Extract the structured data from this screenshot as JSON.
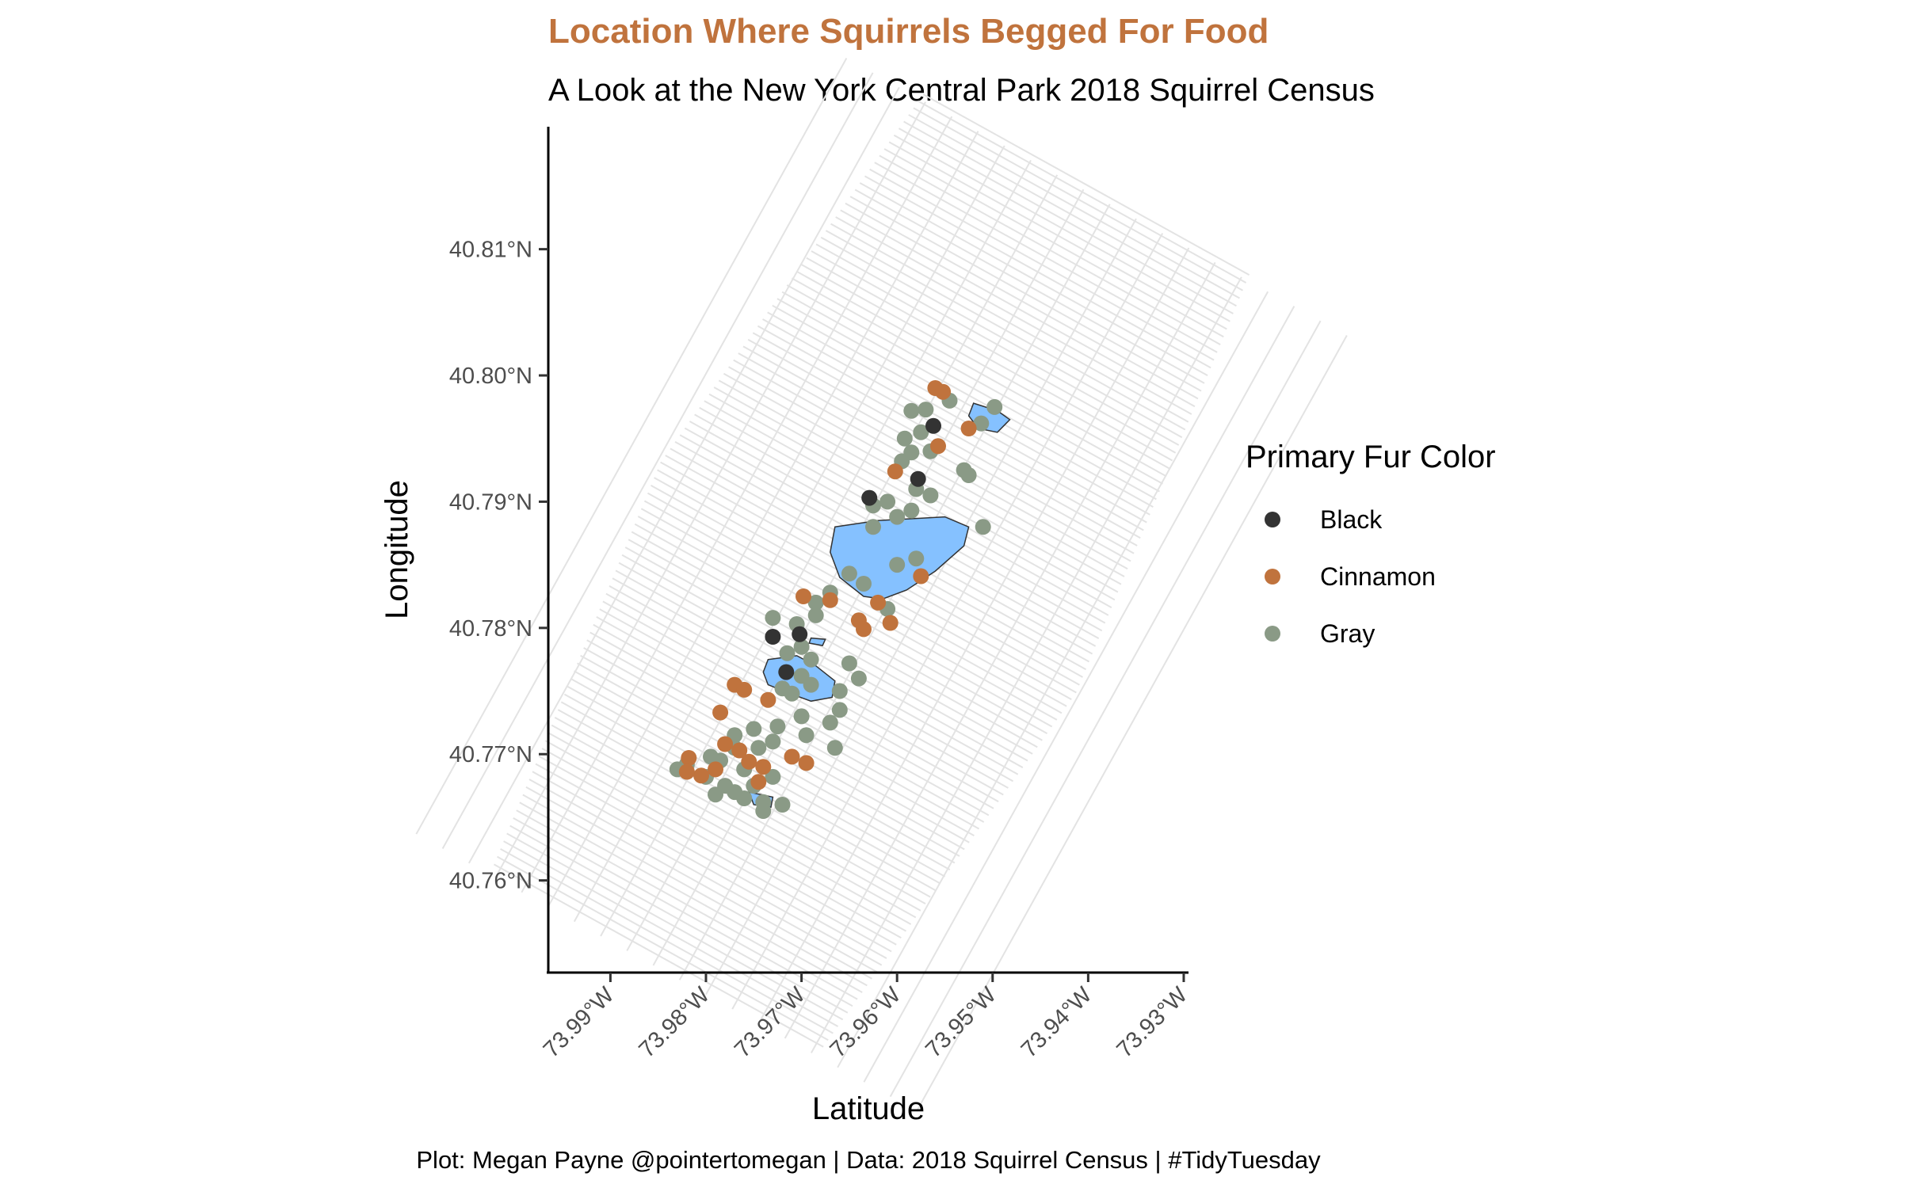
{
  "chart_data": {
    "type": "scatter",
    "title": "Location Where Squirrels Begged For Food",
    "subtitle": "A Look at the New York Central Park 2018 Squirrel Census",
    "xlabel": "Latitude",
    "ylabel": "Longitude",
    "caption": "Plot: Megan Payne @pointertomegan | Data: 2018 Squirrel Census | #TidyTuesday",
    "xlim": [
      -73.9965,
      -73.9295
    ],
    "ylim": [
      40.7527,
      40.8197
    ],
    "x_ticks": [
      {
        "value": -73.99,
        "label": "73.99°W"
      },
      {
        "value": -73.98,
        "label": "73.98°W"
      },
      {
        "value": -73.97,
        "label": "73.97°W"
      },
      {
        "value": -73.96,
        "label": "73.96°W"
      },
      {
        "value": -73.95,
        "label": "73.95°W"
      },
      {
        "value": -73.94,
        "label": "73.94°W"
      },
      {
        "value": -73.93,
        "label": "73.93°W"
      }
    ],
    "y_ticks": [
      {
        "value": 40.76,
        "label": "40.76°N"
      },
      {
        "value": 40.77,
        "label": "40.77°N"
      },
      {
        "value": 40.78,
        "label": "40.78°N"
      },
      {
        "value": 40.79,
        "label": "40.79°N"
      },
      {
        "value": 40.8,
        "label": "40.80°N"
      },
      {
        "value": 40.81,
        "label": "40.81°N"
      }
    ],
    "legend": {
      "title": "Primary Fur Color",
      "position": "right",
      "entries": [
        {
          "label": "Black",
          "color": "#333333"
        },
        {
          "label": "Cinnamon",
          "color": "#c0733d"
        },
        {
          "label": "Gray",
          "color": "#8a9a86"
        }
      ]
    },
    "colors": {
      "title": "#c0733d",
      "water": "#85c1ff",
      "streets": "#e3e3e3"
    },
    "series": [
      {
        "name": "Black",
        "points": [
          [
            -73.9562,
            40.796
          ],
          [
            -73.9578,
            40.7918
          ],
          [
            -73.9629,
            40.7903
          ],
          [
            -73.973,
            40.7793
          ],
          [
            -73.9702,
            40.7795
          ],
          [
            -73.9716,
            40.7765
          ]
        ]
      },
      {
        "name": "Cinnamon",
        "points": [
          [
            -73.956,
            40.799
          ],
          [
            -73.9552,
            40.7987
          ],
          [
            -73.9525,
            40.7958
          ],
          [
            -73.9557,
            40.7944
          ],
          [
            -73.9602,
            40.7924
          ],
          [
            -73.9607,
            40.7804
          ],
          [
            -73.9575,
            40.7841
          ],
          [
            -73.9698,
            40.7825
          ],
          [
            -73.967,
            40.7822
          ],
          [
            -73.964,
            40.7806
          ],
          [
            -73.962,
            40.782
          ],
          [
            -73.9635,
            40.7799
          ],
          [
            -73.977,
            40.7755
          ],
          [
            -73.976,
            40.7751
          ],
          [
            -73.9785,
            40.7733
          ],
          [
            -73.9735,
            40.7743
          ],
          [
            -73.978,
            40.7708
          ],
          [
            -73.9765,
            40.7703
          ],
          [
            -73.9755,
            40.7694
          ],
          [
            -73.9695,
            40.7693
          ],
          [
            -73.974,
            40.769
          ],
          [
            -73.971,
            40.7698
          ],
          [
            -73.9818,
            40.7697
          ],
          [
            -73.979,
            40.7688
          ],
          [
            -73.9805,
            40.7683
          ],
          [
            -73.9745,
            40.7678
          ],
          [
            -73.982,
            40.7686
          ]
        ]
      },
      {
        "name": "Gray",
        "points": [
          [
            -73.9545,
            40.798
          ],
          [
            -73.957,
            40.7973
          ],
          [
            -73.9585,
            40.7972
          ],
          [
            -73.9498,
            40.7975
          ],
          [
            -73.9512,
            40.7962
          ],
          [
            -73.9575,
            40.7955
          ],
          [
            -73.9592,
            40.795
          ],
          [
            -73.9565,
            40.794
          ],
          [
            -73.9585,
            40.7939
          ],
          [
            -73.9595,
            40.7932
          ],
          [
            -73.953,
            40.7925
          ],
          [
            -73.9525,
            40.7921
          ],
          [
            -73.958,
            40.791
          ],
          [
            -73.9565,
            40.7905
          ],
          [
            -73.961,
            40.79
          ],
          [
            -73.96,
            40.7888
          ],
          [
            -73.9585,
            40.7893
          ],
          [
            -73.9625,
            40.7897
          ],
          [
            -73.9625,
            40.788
          ],
          [
            -73.951,
            40.788
          ],
          [
            -73.96,
            40.785
          ],
          [
            -73.958,
            40.7855
          ],
          [
            -73.965,
            40.7843
          ],
          [
            -73.9635,
            40.7835
          ],
          [
            -73.967,
            40.7828
          ],
          [
            -73.9685,
            40.782
          ],
          [
            -73.961,
            40.7815
          ],
          [
            -73.9685,
            40.781
          ],
          [
            -73.9705,
            40.7803
          ],
          [
            -73.973,
            40.7808
          ],
          [
            -73.97,
            40.7785
          ],
          [
            -73.969,
            40.7775
          ],
          [
            -73.9715,
            40.778
          ],
          [
            -73.965,
            40.7772
          ],
          [
            -73.964,
            40.776
          ],
          [
            -73.966,
            40.775
          ],
          [
            -73.969,
            40.7755
          ],
          [
            -73.97,
            40.7762
          ],
          [
            -73.972,
            40.7752
          ],
          [
            -73.971,
            40.7748
          ],
          [
            -73.966,
            40.7735
          ],
          [
            -73.967,
            40.7725
          ],
          [
            -73.97,
            40.773
          ],
          [
            -73.9725,
            40.7722
          ],
          [
            -73.975,
            40.772
          ],
          [
            -73.9695,
            40.7715
          ],
          [
            -73.973,
            40.771
          ],
          [
            -73.977,
            40.7715
          ],
          [
            -73.977,
            40.7705
          ],
          [
            -73.9745,
            40.7705
          ],
          [
            -73.9665,
            40.7705
          ],
          [
            -73.9785,
            40.7695
          ],
          [
            -73.9795,
            40.7698
          ],
          [
            -73.976,
            40.7688
          ],
          [
            -73.973,
            40.7682
          ],
          [
            -73.98,
            40.7682
          ],
          [
            -73.978,
            40.7675
          ],
          [
            -73.975,
            40.7675
          ],
          [
            -73.976,
            40.7665
          ],
          [
            -73.974,
            40.7662
          ],
          [
            -73.977,
            40.767
          ],
          [
            -73.979,
            40.7668
          ],
          [
            -73.972,
            40.766
          ],
          [
            -73.974,
            40.7655
          ],
          [
            -73.982,
            40.7692
          ],
          [
            -73.983,
            40.7688
          ]
        ]
      }
    ]
  }
}
